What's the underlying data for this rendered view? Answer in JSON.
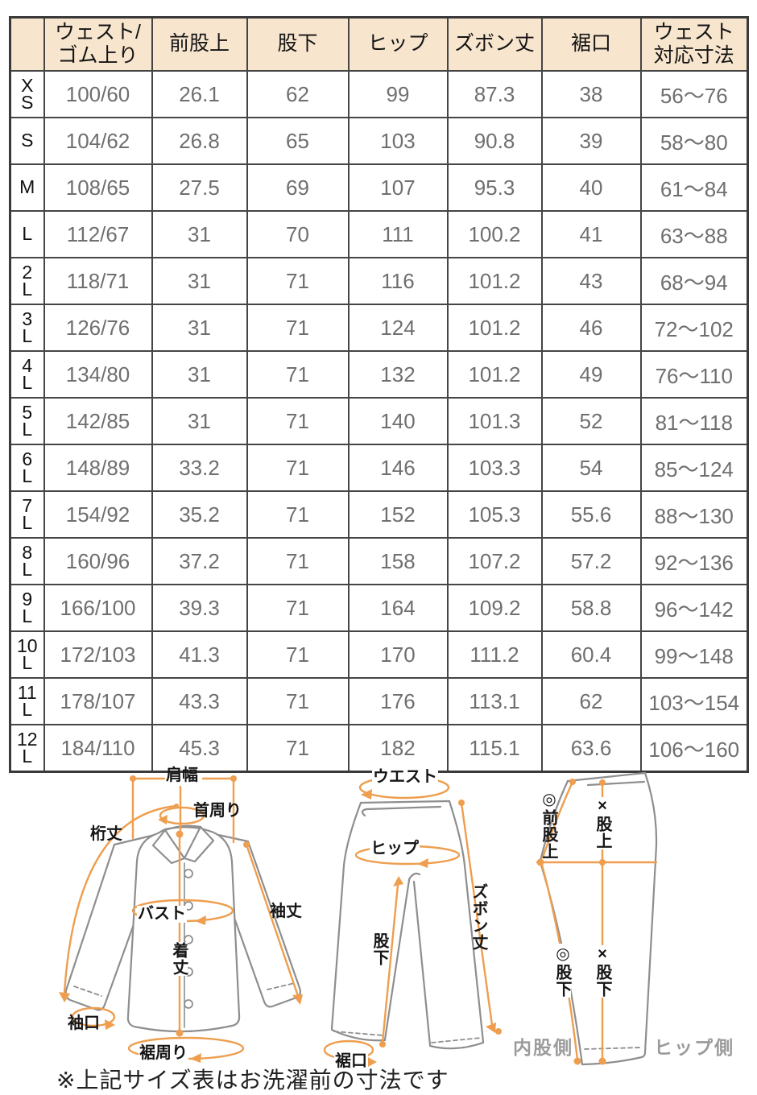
{
  "table": {
    "headers": [
      "",
      "ウェスト/\nゴム上り",
      "前股上",
      "股下",
      "ヒップ",
      "ズボン丈",
      "裾口",
      "ウェスト\n対応寸法"
    ],
    "rows": [
      {
        "size": "X\nS",
        "values": [
          "100/60",
          "26.1",
          "62",
          "99",
          "87.3",
          "38",
          "56〜76"
        ]
      },
      {
        "size": "S",
        "values": [
          "104/62",
          "26.8",
          "65",
          "103",
          "90.8",
          "39",
          "58〜80"
        ]
      },
      {
        "size": "M",
        "values": [
          "108/65",
          "27.5",
          "69",
          "107",
          "95.3",
          "40",
          "61〜84"
        ]
      },
      {
        "size": "L",
        "values": [
          "112/67",
          "31",
          "70",
          "111",
          "100.2",
          "41",
          "63〜88"
        ]
      },
      {
        "size": "2\nL",
        "values": [
          "118/71",
          "31",
          "71",
          "116",
          "101.2",
          "43",
          "68〜94"
        ]
      },
      {
        "size": "3\nL",
        "values": [
          "126/76",
          "31",
          "71",
          "124",
          "101.2",
          "46",
          "72〜102"
        ]
      },
      {
        "size": "4\nL",
        "values": [
          "134/80",
          "31",
          "71",
          "132",
          "101.2",
          "49",
          "76〜110"
        ]
      },
      {
        "size": "5\nL",
        "values": [
          "142/85",
          "31",
          "71",
          "140",
          "101.3",
          "52",
          "81〜118"
        ]
      },
      {
        "size": "6\nL",
        "values": [
          "148/89",
          "33.2",
          "71",
          "146",
          "103.3",
          "54",
          "85〜124"
        ]
      },
      {
        "size": "7\nL",
        "values": [
          "154/92",
          "35.2",
          "71",
          "152",
          "105.3",
          "55.6",
          "88〜130"
        ]
      },
      {
        "size": "8\nL",
        "values": [
          "160/96",
          "37.2",
          "71",
          "158",
          "107.2",
          "57.2",
          "92〜136"
        ]
      },
      {
        "size": "9\nL",
        "values": [
          "166/100",
          "39.3",
          "71",
          "164",
          "109.2",
          "58.8",
          "96〜142"
        ]
      },
      {
        "size": "10\nL",
        "values": [
          "172/103",
          "41.3",
          "71",
          "170",
          "111.2",
          "60.4",
          "99〜148"
        ]
      },
      {
        "size": "11\nL",
        "values": [
          "178/107",
          "43.3",
          "71",
          "176",
          "113.1",
          "62",
          "103〜154"
        ]
      },
      {
        "size": "12\nL",
        "values": [
          "184/110",
          "45.3",
          "71",
          "182",
          "115.1",
          "63.6",
          "106〜160"
        ]
      }
    ]
  },
  "diagrams": {
    "shirt": {
      "shoulder_width": "肩幅",
      "neck": "首周り",
      "yuki": "桁丈",
      "bust": "バスト",
      "body_length": "着丈",
      "sleeve_length": "袖丈",
      "cuff": "袖口",
      "hem_round": "裾周り"
    },
    "pants_front": {
      "waist": "ウエスト",
      "hip": "ヒップ",
      "pants_length": "ズボン丈",
      "inseam": "股下",
      "hem": "裾口"
    },
    "pants_side": {
      "front_rise": "◎前股上",
      "rise": "×股上",
      "inseam_inner": "◎股下",
      "inseam_side": "×股下",
      "inner_side_label": "内股側",
      "hip_side_label": "ヒップ側"
    }
  },
  "note": "※上記サイズ表はお洗濯前の寸法です",
  "colors": {
    "accent": "#EE9E4E",
    "header_bg": "#F7E5CE",
    "grid": "#454545",
    "value_text": "#6F6F6F",
    "garment_outline": "#8E8E8E",
    "side_label": "#9B9B9B"
  }
}
